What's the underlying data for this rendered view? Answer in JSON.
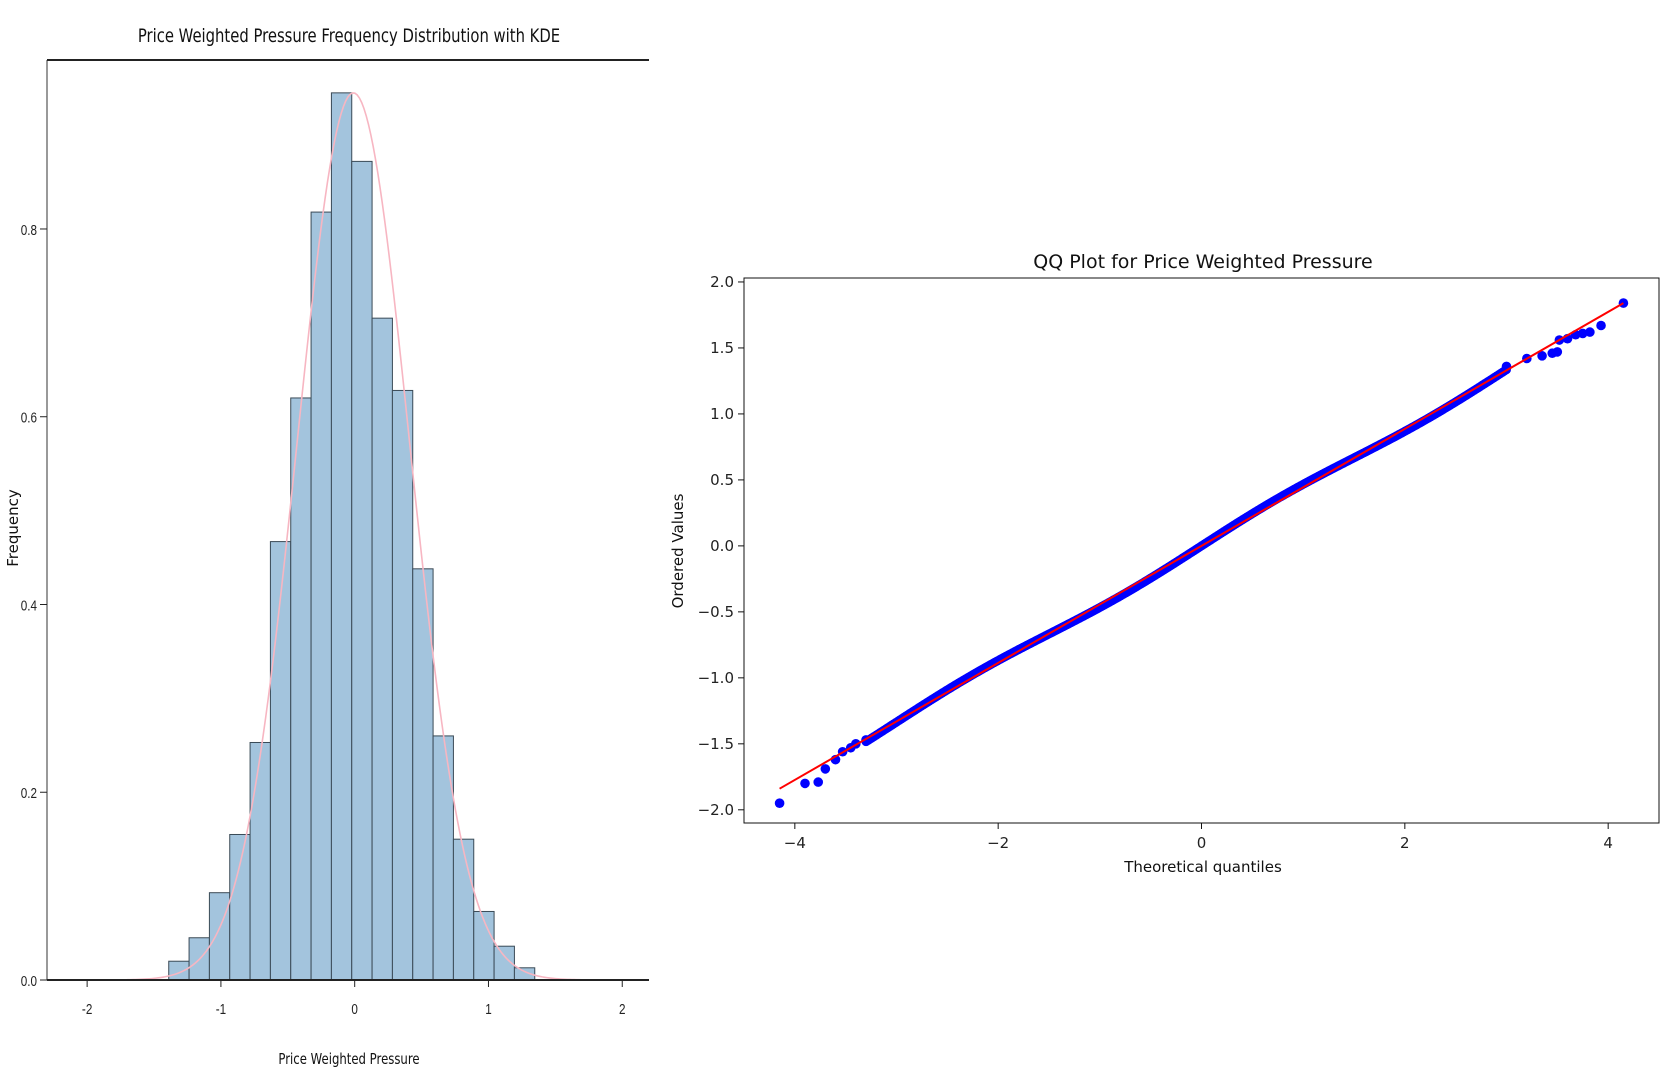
{
  "chart_data": [
    {
      "type": "bar",
      "title": "Price Weighted Pressure Frequency Distribution with KDE",
      "xlabel": "Price Weighted Pressure",
      "ylabel": "Frequency",
      "xlim": [
        -2.3,
        2.2
      ],
      "ylim": [
        0,
        0.98
      ],
      "xticks": [
        -2,
        -1,
        0,
        1,
        2
      ],
      "xtick_labels": [
        "-2",
        "-1",
        "0",
        "1",
        "2"
      ],
      "yticks": [
        0.0,
        0.2,
        0.4,
        0.6,
        0.8
      ],
      "ytick_labels": [
        "0.0",
        "0.2",
        "0.4",
        "0.6",
        "0.8"
      ],
      "bin_width": 0.152,
      "bins": [
        {
          "x0": -1.39,
          "value": 0.02
        },
        {
          "x0": -1.238,
          "value": 0.045
        },
        {
          "x0": -1.086,
          "value": 0.093
        },
        {
          "x0": -0.934,
          "value": 0.155
        },
        {
          "x0": -0.782,
          "value": 0.253
        },
        {
          "x0": -0.63,
          "value": 0.467
        },
        {
          "x0": -0.478,
          "value": 0.62
        },
        {
          "x0": -0.326,
          "value": 0.818
        },
        {
          "x0": -0.174,
          "value": 0.945
        },
        {
          "x0": -0.022,
          "value": 0.872
        },
        {
          "x0": 0.13,
          "value": 0.705
        },
        {
          "x0": 0.282,
          "value": 0.628
        },
        {
          "x0": 0.434,
          "value": 0.438
        },
        {
          "x0": 0.586,
          "value": 0.26
        },
        {
          "x0": 0.738,
          "value": 0.15
        },
        {
          "x0": 0.89,
          "value": 0.073
        },
        {
          "x0": 1.042,
          "value": 0.036
        },
        {
          "x0": 1.194,
          "value": 0.013
        }
      ],
      "kde": {
        "mean": -0.01,
        "sd": 0.42,
        "peak": 0.945,
        "x_min": -2.1,
        "x_max": 2.0
      },
      "colors": {
        "bar_fill": "#a3c4dd",
        "bar_edge": "#3a4a56",
        "kde": "#f7b6c2"
      }
    },
    {
      "type": "scatter",
      "title": "QQ Plot for Price Weighted Pressure",
      "xlabel": "Theoretical quantiles",
      "ylabel": "Ordered Values",
      "xlim": [
        -4.5,
        4.5
      ],
      "ylim": [
        -2.1,
        2.03
      ],
      "xticks": [
        -4,
        -2,
        0,
        2,
        4
      ],
      "xtick_labels": [
        "−4",
        "−2",
        "0",
        "2",
        "4"
      ],
      "yticks": [
        -2.0,
        -1.5,
        -1.0,
        -0.5,
        0.0,
        0.5,
        1.0,
        1.5,
        2.0
      ],
      "ytick_labels": [
        "−2.0",
        "−1.5",
        "−1.0",
        "−0.5",
        "0.0",
        "0.5",
        "1.0",
        "1.5",
        "2.0"
      ],
      "fit_line": {
        "x": [
          -4.15,
          4.15
        ],
        "y": [
          -1.84,
          1.84
        ]
      },
      "points": [
        {
          "x": -4.15,
          "y": -1.95
        },
        {
          "x": -3.9,
          "y": -1.8
        },
        {
          "x": -3.77,
          "y": -1.79
        },
        {
          "x": -3.7,
          "y": -1.69
        },
        {
          "x": -3.6,
          "y": -1.62
        },
        {
          "x": -3.53,
          "y": -1.56
        },
        {
          "x": -3.45,
          "y": -1.53
        },
        {
          "x": -3.4,
          "y": -1.5
        },
        {
          "x": -3.3,
          "y": -1.47
        },
        {
          "x": 3.0,
          "y": 1.36
        },
        {
          "x": 3.2,
          "y": 1.42
        },
        {
          "x": 3.35,
          "y": 1.44
        },
        {
          "x": 3.45,
          "y": 1.46
        },
        {
          "x": 3.5,
          "y": 1.47
        },
        {
          "x": 3.52,
          "y": 1.56
        },
        {
          "x": 3.6,
          "y": 1.57
        },
        {
          "x": 3.68,
          "y": 1.6
        },
        {
          "x": 3.75,
          "y": 1.61
        },
        {
          "x": 3.82,
          "y": 1.62
        },
        {
          "x": 3.93,
          "y": 1.67
        },
        {
          "x": 4.15,
          "y": 1.84
        }
      ],
      "dense_band": {
        "x_from": -3.3,
        "x_to": 3.0,
        "slope": 0.445,
        "wobble": 0.025
      },
      "colors": {
        "points": "#0000ff",
        "line": "#ff0000"
      }
    }
  ]
}
